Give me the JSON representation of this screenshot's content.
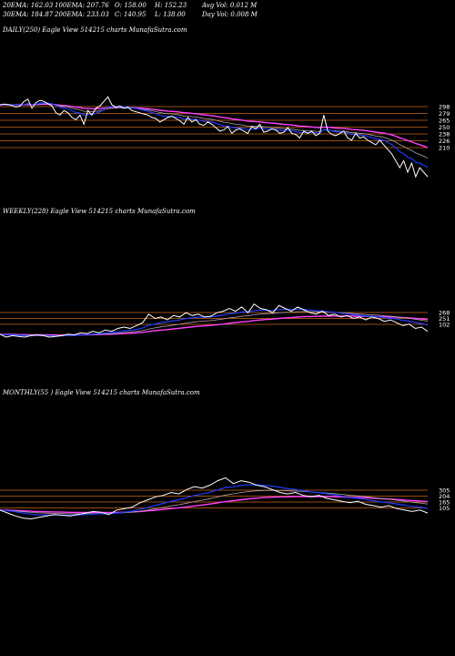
{
  "stats": [
    [
      "20EMA: 162.03",
      "100EMA: 207.76",
      "O: 158.00",
      "H: 152.23",
      "Avg Vol: 0.012  M"
    ],
    [
      "30EMA: 184.87",
      "200EMA: 233.03",
      "C: 140.95",
      "L: 138.00",
      "Day Vol: 0.008  M"
    ]
  ],
  "panels": [
    {
      "label": "DAILY(250) Eagle   View  514215 charts MunafaSutra.com"
    },
    {
      "label": "WEEKLY(228) Eagle   View  514215 charts MunafaSutra.com"
    },
    {
      "label": "MONTHLY(55                    ) Eagle   View  514215 charts MunafaSutra.com"
    }
  ],
  "colors": {
    "price": "#ffffff",
    "ema_short": "#1e3cff",
    "ema_mid": "#b0a0a8",
    "ema_long": "#ff40ff",
    "level": "#c86414",
    "bg": "#000000"
  },
  "chart_data": [
    {
      "type": "line",
      "series": [],
      "levels": [
        298,
        279,
        265,
        250,
        238,
        226,
        210
      ],
      "ticks": [
        "298",
        "279",
        "265",
        "250",
        "238",
        "226",
        "210"
      ],
      "price_y": [
        0.45,
        0.42,
        0.44,
        0.48,
        0.55,
        0.5,
        0.3,
        0.2,
        0.6,
        0.35,
        0.25,
        0.3,
        0.4,
        0.5,
        0.8,
        0.9,
        0.7,
        0.8,
        1.0,
        1.1,
        0.9,
        1.3,
        0.7,
        0.9,
        0.6,
        0.5,
        0.3,
        0.1,
        0.45,
        0.55,
        0.5,
        0.6,
        0.55,
        0.7,
        0.75,
        0.8,
        0.85,
        0.9,
        1.0,
        1.05,
        1.2,
        1.1,
        1.0,
        0.95,
        1.05,
        1.15,
        1.3,
        1.0,
        1.2,
        1.1,
        1.3,
        1.35,
        1.2,
        1.3,
        1.45,
        1.6,
        1.55,
        1.4,
        1.7,
        1.55,
        1.5,
        1.6,
        1.7,
        1.4,
        1.5,
        1.3,
        1.65,
        1.6,
        1.5,
        1.55,
        1.7,
        1.65,
        1.45,
        1.7,
        1.75,
        1.9,
        1.6,
        1.7,
        1.6,
        1.8,
        1.7,
        0.9,
        1.6,
        1.75,
        1.8,
        1.7,
        1.6,
        1.9,
        2.0,
        1.7,
        1.9,
        1.85,
        2.0,
        2.1,
        2.2,
        2.0,
        2.2,
        2.4,
        2.6,
        2.9,
        3.2,
        2.9,
        3.4,
        3.0,
        3.6,
        3.2,
        3.4,
        3.6
      ]
    },
    {
      "type": "line",
      "series": [],
      "levels": [
        268,
        251,
        102
      ],
      "ticks": [
        "268",
        "251",
        "102"
      ],
      "price_y": [
        2.4,
        2.6,
        2.5,
        2.55,
        2.6,
        2.5,
        2.45,
        2.5,
        2.6,
        2.55,
        2.5,
        2.4,
        2.45,
        2.3,
        2.35,
        2.2,
        2.3,
        2.1,
        2.2,
        2.0,
        1.9,
        2.0,
        1.8,
        1.6,
        1.0,
        1.3,
        1.2,
        1.4,
        1.1,
        1.2,
        0.9,
        1.1,
        1.0,
        1.2,
        1.15,
        0.9,
        0.8,
        0.6,
        0.8,
        0.5,
        0.9,
        0.3,
        0.6,
        0.7,
        0.9,
        0.4,
        0.6,
        0.8,
        0.5,
        0.7,
        0.9,
        1.0,
        0.8,
        1.1,
        1.0,
        1.2,
        1.1,
        1.3,
        1.2,
        1.4,
        1.2,
        1.3,
        1.5,
        1.4,
        1.6,
        1.8,
        1.7,
        2.0,
        1.9,
        2.2
      ]
    },
    {
      "type": "line",
      "series": [],
      "levels": [
        305,
        204,
        165,
        105
      ],
      "ticks": [
        "305",
        "204",
        "165",
        "105"
      ],
      "price_y": [
        2.2,
        2.4,
        2.6,
        2.75,
        2.8,
        2.7,
        2.6,
        2.5,
        2.55,
        2.6,
        2.5,
        2.4,
        2.3,
        2.35,
        2.5,
        2.2,
        2.1,
        2.0,
        1.7,
        1.5,
        1.3,
        1.2,
        1.0,
        1.1,
        0.8,
        0.6,
        0.7,
        0.5,
        0.2,
        0.0,
        0.4,
        0.2,
        0.3,
        0.5,
        0.6,
        0.8,
        1.0,
        1.1,
        1.0,
        1.2,
        1.3,
        1.2,
        1.4,
        1.5,
        1.6,
        1.7,
        1.6,
        1.8,
        1.9,
        2.0,
        1.9,
        2.1,
        2.2,
        2.3,
        2.2,
        2.4
      ]
    }
  ]
}
